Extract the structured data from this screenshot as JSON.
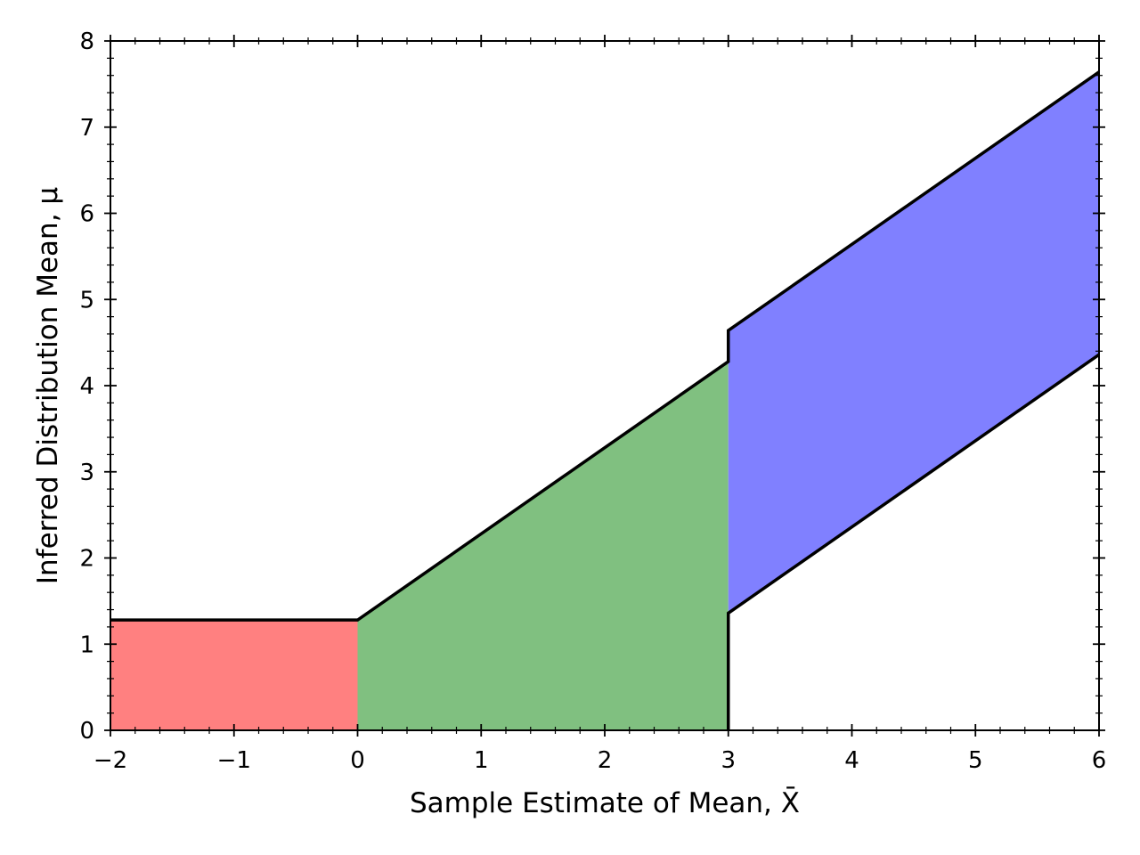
{
  "chart_data": {
    "type": "area",
    "xlabel": "Sample Estimate of Mean, X̄",
    "ylabel": "Inferred Distribution Mean, μ",
    "xlim": [
      -2,
      6
    ],
    "ylim": [
      0,
      8
    ],
    "x_ticks": [
      "−2",
      "−1",
      "0",
      "1",
      "2",
      "3",
      "4",
      "5",
      "6"
    ],
    "y_ticks": [
      "0",
      "1",
      "2",
      "3",
      "4",
      "5",
      "6",
      "7",
      "8"
    ],
    "grid": false,
    "regions": [
      {
        "color": "#ff8080",
        "x": [
          -2,
          0
        ],
        "lower": [
          0,
          0
        ],
        "upper": [
          1.28,
          1.28
        ]
      },
      {
        "color": "#80c080",
        "x": [
          0,
          3
        ],
        "lower": [
          0,
          0
        ],
        "upper": [
          1.28,
          4.28
        ]
      },
      {
        "color": "#8080ff",
        "x": [
          3,
          6
        ],
        "lower": [
          1.36,
          4.36
        ],
        "upper": [
          4.64,
          7.64
        ]
      }
    ],
    "boundary_lines": [
      {
        "x": [
          -2,
          0,
          3,
          3,
          6
        ],
        "y": [
          1.28,
          1.28,
          4.28,
          4.64,
          7.64
        ]
      },
      {
        "x": [
          3,
          3,
          6
        ],
        "y": [
          0,
          1.36,
          4.36
        ]
      }
    ]
  }
}
